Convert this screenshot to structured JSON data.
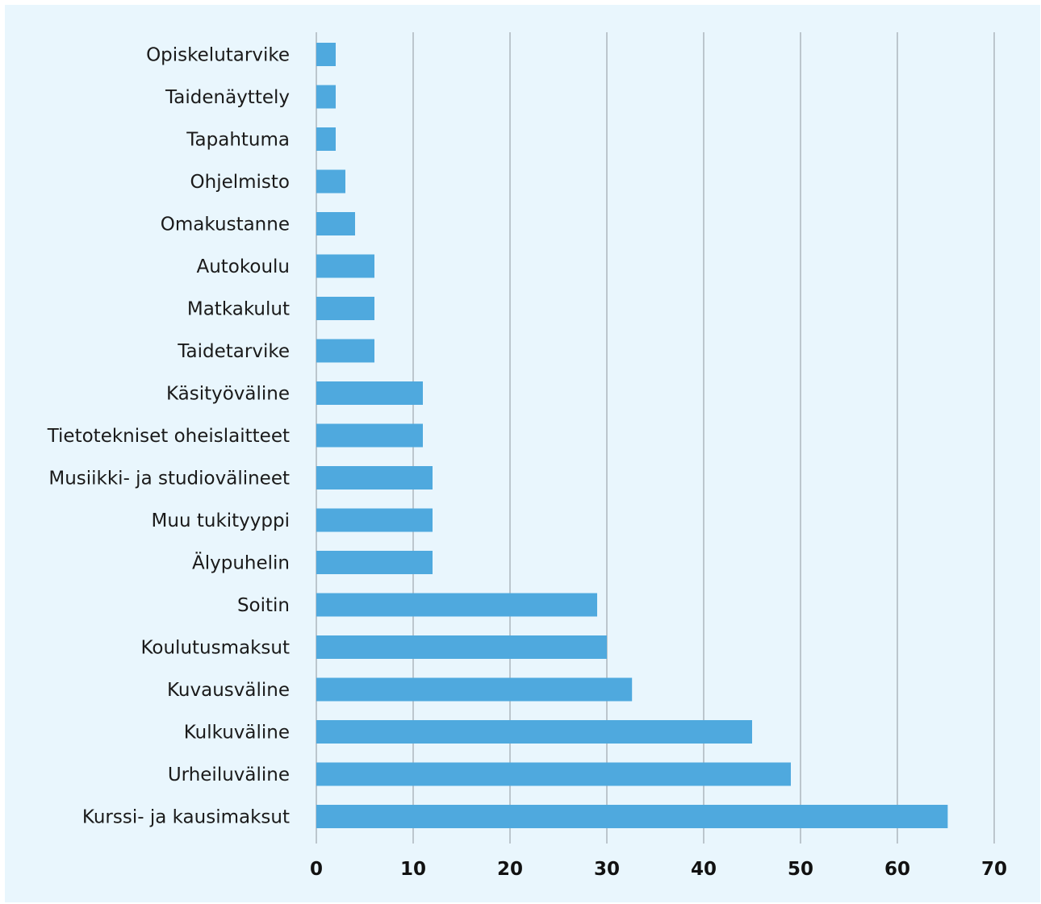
{
  "chart_data": {
    "type": "bar",
    "orientation": "horizontal",
    "title": "",
    "xlabel": "",
    "ylabel": "",
    "categories": [
      "Opiskelutarvike",
      "Taidenäyttely",
      "Tapahtuma",
      "Ohjelmisto",
      "Omakustanne",
      "Autokoulu",
      "Matkakulut",
      "Taidetarvike",
      "Käsityöväline",
      "Tietotekniset oheislaitteet",
      "Musiikki- ja studiovälineet",
      "Muu tukityyppi",
      "Älypuhelin",
      "Soitin",
      "Koulutusmaksut",
      "Kuvausväline",
      "Kulkuväline",
      "Urheiluväline",
      "Kurssi- ja kausimaksut"
    ],
    "values": [
      2,
      2,
      2,
      3,
      4,
      6,
      6,
      6,
      11,
      11,
      12,
      12,
      12,
      29,
      30,
      32.6,
      45,
      49,
      65.2
    ],
    "xlim": [
      0,
      70
    ],
    "xticks": [
      "0",
      "10",
      "20",
      "30",
      "40",
      "50",
      "60",
      "70"
    ],
    "xtick_values": [
      0,
      10,
      20,
      30,
      40,
      50,
      60,
      70
    ],
    "grid": true,
    "legend": "none",
    "colors": {
      "bar": "#4fa9de",
      "background": "#e9f6fd",
      "grid": "#aeb6bd"
    }
  }
}
